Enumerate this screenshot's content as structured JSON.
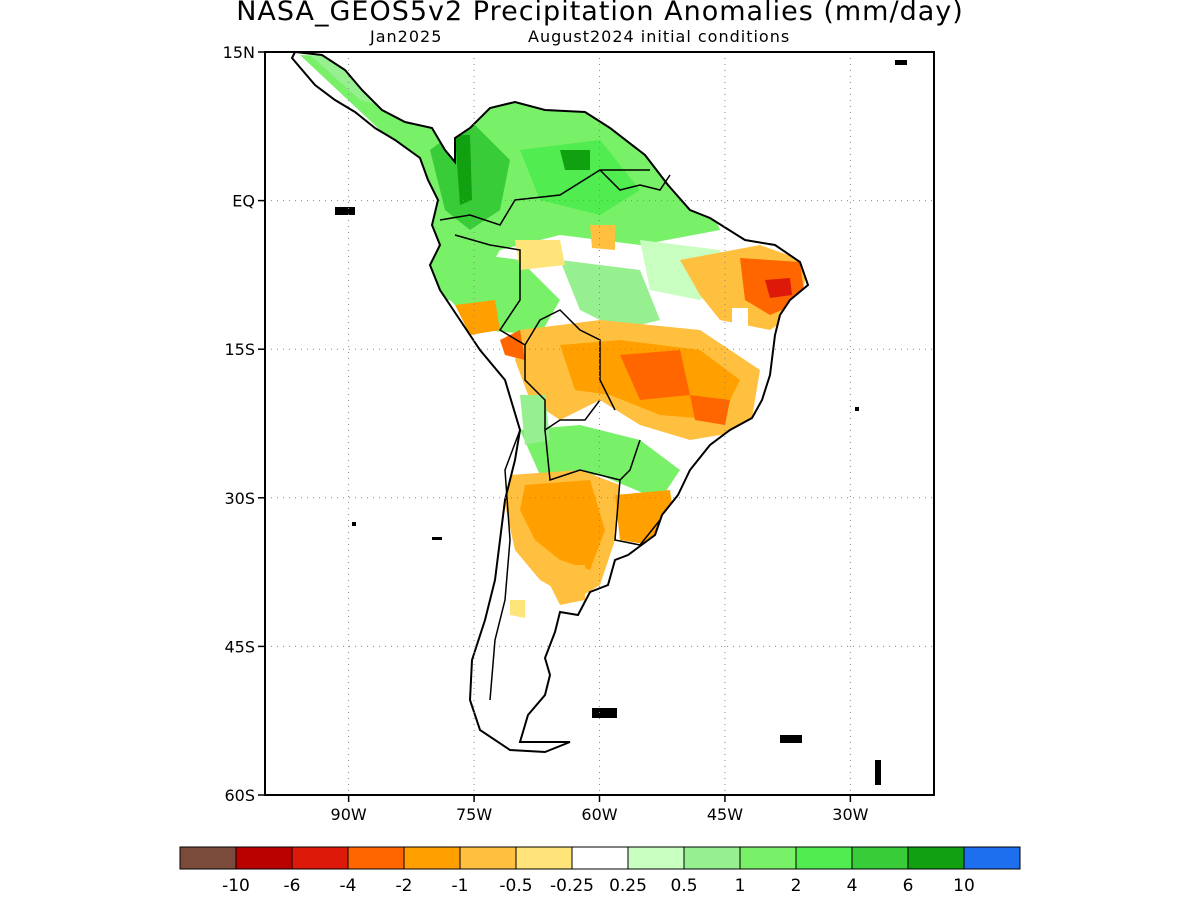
{
  "title": "NASA_GEOS5v2 Precipitation Anomalies (mm/day)",
  "subtitle_left": "Jan2025",
  "subtitle_right": "August2024 initial conditions",
  "map": {
    "lon_range": [
      -100,
      -20
    ],
    "lat_range": [
      -60,
      15
    ],
    "y_ticks": [
      {
        "value": 15,
        "label": "15N"
      },
      {
        "value": 0,
        "label": "EQ"
      },
      {
        "value": -15,
        "label": "15S"
      },
      {
        "value": -30,
        "label": "30S"
      },
      {
        "value": -45,
        "label": "45S"
      },
      {
        "value": -60,
        "label": "60S"
      }
    ],
    "x_ticks": [
      {
        "value": -90,
        "label": "90W"
      },
      {
        "value": -75,
        "label": "75W"
      },
      {
        "value": -60,
        "label": "60W"
      },
      {
        "value": -45,
        "label": "45W"
      },
      {
        "value": -30,
        "label": "30W"
      }
    ],
    "gridlines": "dotted"
  },
  "colorbar": {
    "colors": [
      "#7a4b3a",
      "#bb0000",
      "#dd1a0a",
      "#ff6600",
      "#ffa000",
      "#ffc040",
      "#ffe47a",
      "#ffffff",
      "#c8ffc0",
      "#96f090",
      "#78f068",
      "#50ec50",
      "#38cc38",
      "#10a010",
      "#1e6ef0"
    ],
    "labels": [
      "-10",
      "-6",
      "-4",
      "-2",
      "-1",
      "-0.5",
      "-0.25",
      "0.25",
      "0.5",
      "1",
      "2",
      "4",
      "6",
      "10"
    ]
  }
}
